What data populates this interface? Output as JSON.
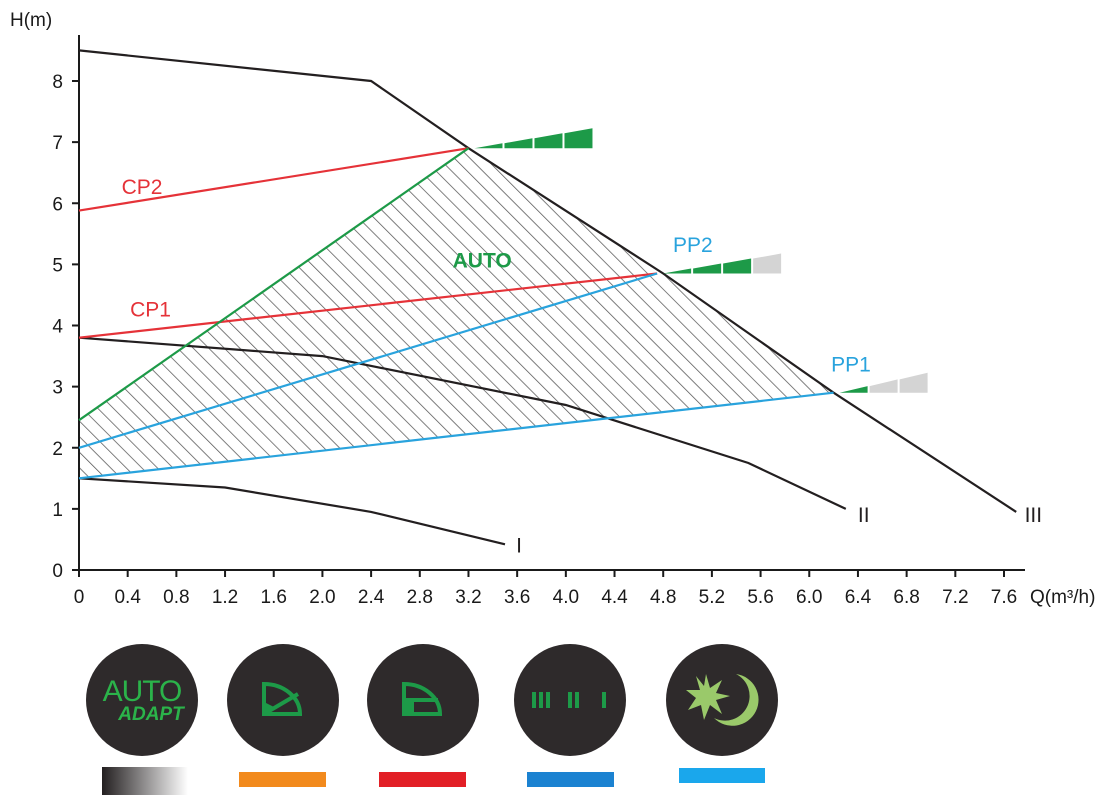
{
  "chart_data": {
    "type": "line",
    "xlabel": "Q(m³/h)",
    "ylabel": "H(m)",
    "xlim": [
      0,
      7.6
    ],
    "ylim": [
      0,
      8
    ],
    "xticks": [
      "0",
      "0.4",
      "0.8",
      "1.2",
      "1.6",
      "2.0",
      "2.4",
      "2.8",
      "3.2",
      "3.6",
      "4.0",
      "4.4",
      "4.8",
      "5.2",
      "5.6",
      "6.0",
      "6.4",
      "6.8",
      "7.2",
      "7.6"
    ],
    "yticks": [
      "0",
      "1",
      "2",
      "3",
      "4",
      "5",
      "6",
      "7",
      "8"
    ],
    "series": [
      {
        "name": "III",
        "color": "#231f20",
        "points": [
          [
            0,
            8.5
          ],
          [
            2.4,
            8.0
          ],
          [
            3.2,
            6.9
          ],
          [
            4.8,
            4.85
          ],
          [
            6.2,
            2.9
          ],
          [
            7.7,
            0.95
          ]
        ]
      },
      {
        "name": "II",
        "color": "#231f20",
        "points": [
          [
            0,
            3.8
          ],
          [
            2.0,
            3.5
          ],
          [
            4.0,
            2.7
          ],
          [
            5.5,
            1.75
          ],
          [
            6.3,
            1.0
          ]
        ]
      },
      {
        "name": "I",
        "color": "#231f20",
        "points": [
          [
            0,
            1.5
          ],
          [
            1.2,
            1.35
          ],
          [
            2.4,
            0.95
          ],
          [
            3.5,
            0.42
          ]
        ]
      },
      {
        "name": "CP2",
        "color": "#e53238",
        "points": [
          [
            0,
            5.88
          ],
          [
            3.2,
            6.9
          ]
        ]
      },
      {
        "name": "CP1",
        "color": "#e53238",
        "points": [
          [
            0,
            3.8
          ],
          [
            4.75,
            4.85
          ]
        ]
      },
      {
        "name": "PP2",
        "color": "#29a3dd",
        "points": [
          [
            0,
            2.0
          ],
          [
            4.75,
            4.85
          ]
        ]
      },
      {
        "name": "PP1",
        "color": "#29a3dd",
        "points": [
          [
            0,
            1.5
          ],
          [
            6.2,
            2.9
          ]
        ]
      },
      {
        "name": "AUTO",
        "color": "#1d9a48",
        "points": [
          [
            0,
            2.45
          ],
          [
            3.2,
            6.9
          ]
        ]
      }
    ],
    "shaded_region": {
      "label": "AUTO",
      "polygon": [
        [
          0,
          1.5
        ],
        [
          0,
          2.45
        ],
        [
          3.2,
          6.9
        ],
        [
          4.8,
          4.85
        ],
        [
          6.2,
          2.9
        ]
      ]
    },
    "curve_labels": [
      "I",
      "II",
      "III",
      "CP1",
      "CP2",
      "PP1",
      "PP2",
      "AUTO"
    ],
    "grid": false
  },
  "modes": {
    "auto_text_main": "AUTO",
    "auto_text_sub": "ADAPT",
    "bar_colors": [
      "gradient-black-white",
      "#f28a1d",
      "#e21f26",
      "#1b82d1",
      "#1aa7ec"
    ],
    "icon_names": [
      "auto-adapt-icon",
      "proportional-pressure-icon",
      "constant-pressure-icon",
      "fixed-speed-icon",
      "night-mode-icon"
    ],
    "icon_color": "#1d9a48",
    "night_icon_color": "#9ac96a"
  }
}
